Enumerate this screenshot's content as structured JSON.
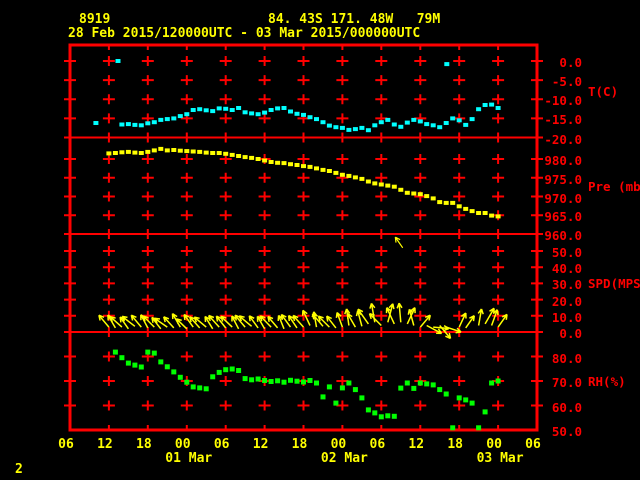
{
  "header": {
    "station_id": "8919",
    "location": "84. 43S 171. 48W   79M",
    "time_range": "28 Feb 2015/120000UTC - 03 Mar 2015/000000UTC"
  },
  "page_number": "2",
  "colors": {
    "background": "#000000",
    "frame": "#ff0000",
    "axis_text": "#ff0000",
    "header_text": "#ffff00",
    "temperature_series": "#00ffff",
    "pressure_series": "#ffff00",
    "wind_series": "#ffff00",
    "humidity_series": "#00ff00"
  },
  "chart_data": {
    "type": "scatter",
    "x": {
      "start": "28 Feb 2015 06UTC",
      "end": "03 Mar 2015 06UTC",
      "tick_interval_hours": 6,
      "hour_labels": [
        "06",
        "12",
        "18",
        "00",
        "06",
        "12",
        "18",
        "00",
        "06",
        "12",
        "18",
        "00",
        "06"
      ],
      "date_labels": [
        {
          "label": "01 Mar",
          "tick_index": 3
        },
        {
          "label": "02 Mar",
          "tick_index": 7
        },
        {
          "label": "03 Mar",
          "tick_index": 11
        }
      ]
    },
    "panels": [
      {
        "name": "temperature",
        "ylabel": "T(C)",
        "ylim": [
          -20,
          4.2
        ],
        "yticks": [
          0,
          -5,
          -10,
          -15,
          -20
        ],
        "tick_labels": [
          "0.0",
          "-5.0",
          "-10.0",
          "-15.0",
          "-20.0"
        ]
      },
      {
        "name": "pressure",
        "ylabel": "Pre (mb)",
        "ylim": [
          960,
          985.7
        ],
        "yticks": [
          980,
          975,
          970,
          965,
          960
        ],
        "tick_labels": [
          "980.0",
          "975.0",
          "970.0",
          "965.0",
          "960.0"
        ]
      },
      {
        "name": "wind_speed",
        "ylabel": "SPD(MPS)",
        "ylim": [
          0,
          60.5
        ],
        "yticks": [
          50,
          40,
          30,
          20,
          10,
          0
        ],
        "tick_labels": [
          "50.0",
          "40.0",
          "30.0",
          "20.0",
          "10.0",
          "0.0"
        ]
      },
      {
        "name": "relative_humidity",
        "ylabel": "RH(%)",
        "ylim": [
          50,
          90
        ],
        "yticks": [
          80,
          70,
          60,
          50
        ],
        "tick_labels": [
          "80.0",
          "70.0",
          "60.0",
          "50.0"
        ]
      }
    ],
    "series": [
      {
        "name": "temperature_c",
        "panel": "temperature",
        "points": [
          [
            4,
            -16.2
          ],
          [
            8,
            -16.6
          ],
          [
            9,
            -16.5
          ],
          [
            10,
            -16.7
          ],
          [
            11,
            -16.8
          ],
          [
            12,
            -16.3
          ],
          [
            13,
            -16.0
          ],
          [
            14,
            -15.4
          ],
          [
            15,
            -15.2
          ],
          [
            16,
            -15.0
          ],
          [
            17,
            -14.4
          ],
          [
            18,
            -13.9
          ],
          [
            19,
            -12.8
          ],
          [
            20,
            -12.6
          ],
          [
            21,
            -12.9
          ],
          [
            22,
            -13.1
          ],
          [
            23,
            -12.4
          ],
          [
            24,
            -12.5
          ],
          [
            25,
            -12.8
          ],
          [
            26,
            -12.3
          ],
          [
            27,
            -13.4
          ],
          [
            28,
            -13.7
          ],
          [
            29,
            -13.9
          ],
          [
            30,
            -13.5
          ],
          [
            31,
            -12.8
          ],
          [
            32,
            -12.4
          ],
          [
            33,
            -12.3
          ],
          [
            34,
            -13.2
          ],
          [
            35,
            -13.8
          ],
          [
            36,
            -14.1
          ],
          [
            37,
            -14.7
          ],
          [
            38,
            -15.2
          ],
          [
            39,
            -16.0
          ],
          [
            40,
            -16.9
          ],
          [
            41,
            -17.3
          ],
          [
            42,
            -17.5
          ],
          [
            43,
            -18.0
          ],
          [
            44,
            -17.8
          ],
          [
            45,
            -17.5
          ],
          [
            46,
            -18.1
          ],
          [
            47,
            -16.8
          ],
          [
            48,
            -16.0
          ],
          [
            49,
            -15.4
          ],
          [
            50,
            -16.6
          ],
          [
            51,
            -17.2
          ],
          [
            52,
            -16.1
          ],
          [
            53,
            -15.4
          ],
          [
            54,
            -15.8
          ],
          [
            55,
            -16.5
          ],
          [
            56,
            -16.8
          ],
          [
            57,
            -17.3
          ],
          [
            58,
            -16.2
          ],
          [
            59,
            -15.0
          ],
          [
            60,
            -15.5
          ],
          [
            61,
            -16.7
          ],
          [
            62,
            -15.2
          ],
          [
            63,
            -12.6
          ],
          [
            64,
            -11.5
          ],
          [
            65,
            -11.4
          ],
          [
            66,
            -12.3
          ]
        ]
      },
      {
        "name": "temperature_outliers_c",
        "panel": "temperature",
        "points": [
          [
            7.4,
            0.0
          ],
          [
            58.1,
            -0.8
          ]
        ]
      },
      {
        "name": "pressure_mb",
        "panel": "pressure",
        "points": [
          [
            6,
            981.5
          ],
          [
            7,
            981.6
          ],
          [
            8,
            981.8
          ],
          [
            9,
            981.9
          ],
          [
            10,
            981.7
          ],
          [
            11,
            981.6
          ],
          [
            12,
            981.9
          ],
          [
            13,
            982.3
          ],
          [
            14,
            982.7
          ],
          [
            15,
            982.3
          ],
          [
            16,
            982.4
          ],
          [
            17,
            982.2
          ],
          [
            18,
            982.1
          ],
          [
            19,
            982.0
          ],
          [
            20,
            981.9
          ],
          [
            21,
            981.7
          ],
          [
            22,
            981.6
          ],
          [
            23,
            981.6
          ],
          [
            24,
            981.4
          ],
          [
            25,
            981.1
          ],
          [
            26,
            980.8
          ],
          [
            27,
            980.5
          ],
          [
            28,
            980.3
          ],
          [
            29,
            980.0
          ],
          [
            30,
            979.6
          ],
          [
            31,
            979.2
          ],
          [
            32,
            979.0
          ],
          [
            33,
            978.9
          ],
          [
            34,
            978.6
          ],
          [
            35,
            978.4
          ],
          [
            36,
            978.1
          ],
          [
            37,
            977.9
          ],
          [
            38,
            977.5
          ],
          [
            39,
            977.1
          ],
          [
            40,
            976.8
          ],
          [
            41,
            976.3
          ],
          [
            42,
            975.8
          ],
          [
            43,
            975.5
          ],
          [
            44,
            975.1
          ],
          [
            45,
            974.7
          ],
          [
            46,
            974.0
          ],
          [
            47,
            973.5
          ],
          [
            48,
            973.2
          ],
          [
            49,
            972.9
          ],
          [
            50,
            972.6
          ],
          [
            51,
            971.8
          ],
          [
            52,
            971.0
          ],
          [
            53,
            970.8
          ],
          [
            54,
            970.6
          ],
          [
            55,
            970.1
          ],
          [
            56,
            969.5
          ],
          [
            57,
            968.5
          ],
          [
            58,
            968.3
          ],
          [
            59,
            968.3
          ],
          [
            60,
            967.4
          ],
          [
            61,
            966.7
          ],
          [
            62,
            966.1
          ],
          [
            63,
            965.6
          ],
          [
            64,
            965.6
          ],
          [
            65,
            964.9
          ],
          [
            66,
            964.7
          ]
        ]
      },
      {
        "name": "relative_humidity_pct",
        "panel": "relative_humidity",
        "points": [
          [
            7,
            81.8
          ],
          [
            8,
            79.5
          ],
          [
            9,
            77.3
          ],
          [
            10,
            76.5
          ],
          [
            11,
            75.7
          ],
          [
            12,
            81.8
          ],
          [
            13,
            81.4
          ],
          [
            14,
            77.8
          ],
          [
            15,
            75.8
          ],
          [
            16,
            73.7
          ],
          [
            17,
            71.5
          ],
          [
            18,
            69.5
          ],
          [
            19,
            67.6
          ],
          [
            20,
            67.2
          ],
          [
            21,
            66.8
          ],
          [
            22,
            71.7
          ],
          [
            23,
            73.5
          ],
          [
            24,
            74.6
          ],
          [
            25,
            74.9
          ],
          [
            26,
            74.3
          ],
          [
            27,
            71.0
          ],
          [
            28,
            70.5
          ],
          [
            29,
            70.8
          ],
          [
            30,
            70.2
          ],
          [
            31,
            69.8
          ],
          [
            32,
            70.1
          ],
          [
            33,
            69.5
          ],
          [
            34,
            70.3
          ],
          [
            35,
            69.9
          ],
          [
            36,
            69.6
          ],
          [
            37,
            70.2
          ],
          [
            38,
            69.2
          ],
          [
            39,
            63.5
          ],
          [
            40,
            67.6
          ],
          [
            41,
            61.0
          ],
          [
            42,
            67.2
          ],
          [
            43,
            69.2
          ],
          [
            44,
            66.5
          ],
          [
            45,
            63.1
          ],
          [
            46,
            58.2
          ],
          [
            47,
            57.0
          ],
          [
            48,
            55.4
          ],
          [
            49,
            55.8
          ],
          [
            50,
            55.6
          ],
          [
            51,
            67.1
          ],
          [
            52,
            69.2
          ],
          [
            53,
            67.0
          ],
          [
            54,
            69.2
          ],
          [
            55,
            68.8
          ],
          [
            56,
            68.4
          ],
          [
            57,
            66.5
          ],
          [
            58,
            64.7
          ],
          [
            59,
            50.9
          ],
          [
            60,
            63.1
          ],
          [
            61,
            62.3
          ],
          [
            62,
            61.0
          ],
          [
            63,
            50.9
          ],
          [
            64,
            57.4
          ],
          [
            65,
            69.2
          ],
          [
            66,
            70.0
          ]
        ]
      },
      {
        "name": "wind_mps",
        "panel": "wind_speed",
        "barb_fields": "hour, speed_mps, direction_deg_cw_from_up",
        "barbs": [
          [
            6,
            3,
            -40
          ],
          [
            7,
            2.5,
            -30
          ],
          [
            8,
            3,
            -48
          ],
          [
            9,
            2,
            -35
          ],
          [
            10,
            3.5,
            -52
          ],
          [
            11,
            3,
            -40
          ],
          [
            12,
            2.5,
            -28
          ],
          [
            13,
            3,
            -45
          ],
          [
            14,
            2,
            -38
          ],
          [
            15,
            3,
            -55
          ],
          [
            16,
            2.5,
            -42
          ],
          [
            17,
            3,
            -30
          ],
          [
            18,
            2,
            -46
          ],
          [
            19,
            3,
            -36
          ],
          [
            20,
            2.5,
            -42
          ],
          [
            21,
            3,
            -50
          ],
          [
            22,
            2,
            -32
          ],
          [
            23,
            3,
            -42
          ],
          [
            24,
            2.5,
            -38
          ],
          [
            25,
            3,
            -46
          ],
          [
            26,
            2,
            -28
          ],
          [
            27,
            3,
            -40
          ],
          [
            28,
            3.5,
            -50
          ],
          [
            29,
            2.5,
            -36
          ],
          [
            30,
            2,
            -30
          ],
          [
            31,
            3,
            -44
          ],
          [
            32,
            2.5,
            -40
          ],
          [
            33,
            2,
            -22
          ],
          [
            34,
            3,
            -36
          ],
          [
            35,
            2.5,
            -34
          ],
          [
            36,
            3,
            -42
          ],
          [
            37,
            4,
            -25
          ],
          [
            38,
            3,
            -10
          ],
          [
            39,
            3.5,
            -40
          ],
          [
            40,
            3,
            -45
          ],
          [
            41,
            2.5,
            -38
          ],
          [
            42,
            3,
            -20
          ],
          [
            43,
            4,
            -8
          ],
          [
            44,
            3,
            -30
          ],
          [
            45,
            3.5,
            -15
          ],
          [
            46,
            5,
            -35
          ],
          [
            47,
            6,
            -10
          ],
          [
            48,
            4,
            -45
          ],
          [
            49,
            6,
            15
          ],
          [
            50,
            5,
            -25
          ],
          [
            51,
            6,
            -5
          ],
          [
            52,
            5,
            25
          ],
          [
            53,
            4,
            -15
          ],
          [
            54,
            3,
            40
          ],
          [
            55,
            4,
            118
          ],
          [
            56,
            3,
            95
          ],
          [
            57,
            4,
            140
          ],
          [
            58,
            3,
            108
          ],
          [
            60,
            3,
            25
          ],
          [
            61,
            2.5,
            35
          ],
          [
            63,
            4,
            10
          ],
          [
            64,
            5,
            30
          ],
          [
            65,
            4,
            20
          ],
          [
            66,
            3,
            35
          ]
        ],
        "outlier_barb": [
          51.3,
          52,
          -35
        ]
      }
    ]
  }
}
